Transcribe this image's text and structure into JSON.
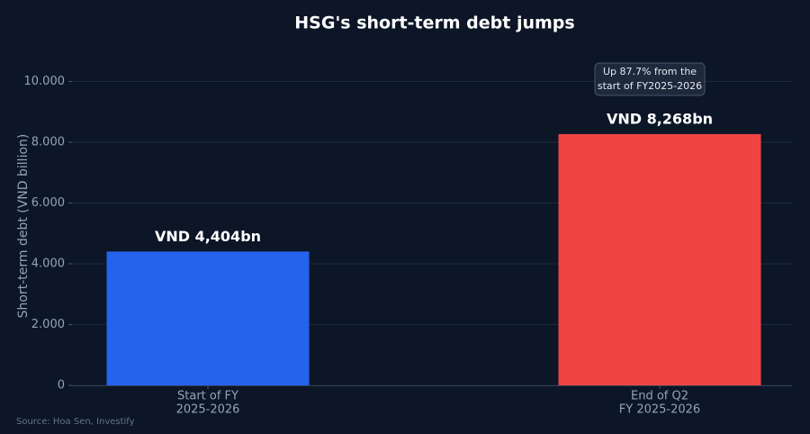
{
  "chart_data": {
    "type": "bar",
    "title": "HSG's short-term debt jumps",
    "y_label": "Short-term debt (VND billion)",
    "categories": [
      [
        "Start of FY",
        "2025-2026"
      ],
      [
        "End of Q2",
        "FY 2025-2026"
      ]
    ],
    "values": [
      4404,
      8268
    ],
    "value_labels": [
      "VND 4,404bn",
      "VND 8,268bn"
    ],
    "colors": [
      "#2563eb",
      "#ef4444"
    ],
    "ylim": [
      0,
      10500
    ],
    "yticks": [
      0,
      {
        "value": 2000,
        "label": "2.000"
      },
      {
        "value": 4000,
        "label": "4.000"
      },
      {
        "value": 6000,
        "label": "6.000"
      },
      {
        "value": 8000,
        "label": "8.000"
      },
      {
        "value": 10000,
        "label": "10.000"
      }
    ],
    "grid": true,
    "annotation": [
      "Up 87.7% from the",
      "start of FY2025-2026"
    ],
    "source": "Source: Hoa Sen, Investify"
  }
}
